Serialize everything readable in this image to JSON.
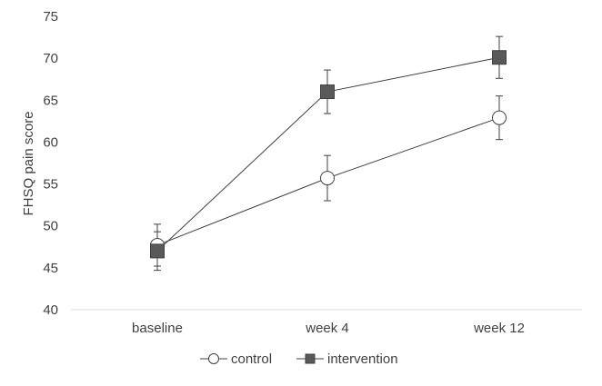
{
  "chart_data": {
    "type": "line",
    "categories": [
      "baseline",
      "week 4",
      "week 12"
    ],
    "ylabel": "FHSQ pain score",
    "xlabel": "",
    "ylim": [
      40,
      75
    ],
    "yticks": [
      40,
      45,
      50,
      55,
      60,
      65,
      70,
      75
    ],
    "grid": false,
    "legend_position": "bottom",
    "series": [
      {
        "name": "control",
        "marker": "circle-open",
        "values": [
          47.7,
          55.7,
          62.9
        ],
        "error": [
          2.5,
          2.7,
          2.6
        ]
      },
      {
        "name": "intervention",
        "marker": "square-filled",
        "values": [
          47.0,
          66.0,
          70.1
        ],
        "error": [
          2.3,
          2.6,
          2.5
        ]
      }
    ],
    "colors": {
      "line": "#404040",
      "marker_fill_open": "#ffffff",
      "marker_fill_filled": "#595959",
      "axis": "#d9d9d9",
      "text": "#404040"
    }
  }
}
